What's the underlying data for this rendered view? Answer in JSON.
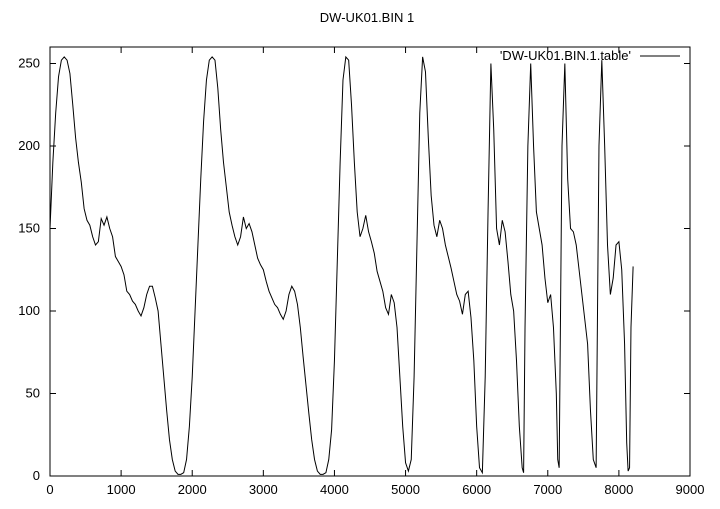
{
  "chart_data": {
    "type": "line",
    "title": "DW-UK01.BIN 1",
    "xlabel": "",
    "ylabel": "",
    "xlim": [
      0,
      9000
    ],
    "ylim": [
      0,
      260
    ],
    "xticks": [
      0,
      1000,
      2000,
      3000,
      4000,
      5000,
      6000,
      7000,
      8000,
      9000
    ],
    "yticks": [
      0,
      50,
      100,
      150,
      200,
      250
    ],
    "grid": false,
    "legend_position": "top-right",
    "series": [
      {
        "name": "'DW-UK01.BIN.1.table'",
        "color": "#000000",
        "points": [
          [
            0,
            150
          ],
          [
            40,
            190
          ],
          [
            80,
            220
          ],
          [
            120,
            242
          ],
          [
            160,
            252
          ],
          [
            200,
            254
          ],
          [
            240,
            252
          ],
          [
            280,
            244
          ],
          [
            320,
            225
          ],
          [
            360,
            205
          ],
          [
            400,
            190
          ],
          [
            440,
            178
          ],
          [
            480,
            162
          ],
          [
            520,
            155
          ],
          [
            560,
            152
          ],
          [
            600,
            145
          ],
          [
            640,
            140
          ],
          [
            680,
            142
          ],
          [
            720,
            156
          ],
          [
            760,
            152
          ],
          [
            800,
            157
          ],
          [
            840,
            150
          ],
          [
            880,
            145
          ],
          [
            920,
            133
          ],
          [
            960,
            130
          ],
          [
            1000,
            127
          ],
          [
            1040,
            122
          ],
          [
            1080,
            112
          ],
          [
            1120,
            110
          ],
          [
            1160,
            106
          ],
          [
            1200,
            104
          ],
          [
            1240,
            100
          ],
          [
            1280,
            97
          ],
          [
            1320,
            102
          ],
          [
            1360,
            110
          ],
          [
            1400,
            115
          ],
          [
            1440,
            115
          ],
          [
            1480,
            108
          ],
          [
            1520,
            100
          ],
          [
            1560,
            80
          ],
          [
            1600,
            60
          ],
          [
            1640,
            40
          ],
          [
            1680,
            22
          ],
          [
            1720,
            10
          ],
          [
            1760,
            3
          ],
          [
            1800,
            1
          ],
          [
            1840,
            1
          ],
          [
            1880,
            2
          ],
          [
            1920,
            10
          ],
          [
            1960,
            30
          ],
          [
            2000,
            60
          ],
          [
            2040,
            100
          ],
          [
            2080,
            140
          ],
          [
            2120,
            180
          ],
          [
            2160,
            215
          ],
          [
            2200,
            240
          ],
          [
            2240,
            252
          ],
          [
            2280,
            254
          ],
          [
            2320,
            252
          ],
          [
            2360,
            235
          ],
          [
            2400,
            210
          ],
          [
            2440,
            190
          ],
          [
            2480,
            175
          ],
          [
            2520,
            160
          ],
          [
            2560,
            152
          ],
          [
            2600,
            145
          ],
          [
            2640,
            140
          ],
          [
            2680,
            145
          ],
          [
            2720,
            157
          ],
          [
            2760,
            150
          ],
          [
            2800,
            153
          ],
          [
            2840,
            148
          ],
          [
            2880,
            140
          ],
          [
            2920,
            132
          ],
          [
            2960,
            128
          ],
          [
            3000,
            125
          ],
          [
            3040,
            118
          ],
          [
            3080,
            112
          ],
          [
            3120,
            108
          ],
          [
            3160,
            104
          ],
          [
            3200,
            102
          ],
          [
            3240,
            98
          ],
          [
            3280,
            95
          ],
          [
            3320,
            100
          ],
          [
            3360,
            110
          ],
          [
            3400,
            115
          ],
          [
            3440,
            112
          ],
          [
            3480,
            104
          ],
          [
            3520,
            90
          ],
          [
            3560,
            72
          ],
          [
            3600,
            55
          ],
          [
            3640,
            38
          ],
          [
            3680,
            22
          ],
          [
            3720,
            10
          ],
          [
            3760,
            3
          ],
          [
            3800,
            1
          ],
          [
            3840,
            1
          ],
          [
            3880,
            2
          ],
          [
            3920,
            10
          ],
          [
            3960,
            28
          ],
          [
            4000,
            70
          ],
          [
            4040,
            130
          ],
          [
            4080,
            190
          ],
          [
            4120,
            240
          ],
          [
            4160,
            254
          ],
          [
            4200,
            252
          ],
          [
            4240,
            225
          ],
          [
            4280,
            190
          ],
          [
            4320,
            160
          ],
          [
            4360,
            145
          ],
          [
            4400,
            150
          ],
          [
            4440,
            158
          ],
          [
            4480,
            148
          ],
          [
            4520,
            142
          ],
          [
            4560,
            135
          ],
          [
            4600,
            124
          ],
          [
            4640,
            118
          ],
          [
            4680,
            112
          ],
          [
            4720,
            102
          ],
          [
            4760,
            98
          ],
          [
            4800,
            110
          ],
          [
            4840,
            105
          ],
          [
            4880,
            90
          ],
          [
            4920,
            60
          ],
          [
            4960,
            30
          ],
          [
            5000,
            8
          ],
          [
            5040,
            3
          ],
          [
            5080,
            10
          ],
          [
            5120,
            60
          ],
          [
            5160,
            140
          ],
          [
            5200,
            220
          ],
          [
            5240,
            254
          ],
          [
            5280,
            245
          ],
          [
            5320,
            205
          ],
          [
            5360,
            170
          ],
          [
            5400,
            152
          ],
          [
            5440,
            145
          ],
          [
            5480,
            155
          ],
          [
            5520,
            150
          ],
          [
            5560,
            140
          ],
          [
            5600,
            133
          ],
          [
            5640,
            126
          ],
          [
            5680,
            118
          ],
          [
            5720,
            110
          ],
          [
            5760,
            106
          ],
          [
            5800,
            98
          ],
          [
            5840,
            110
          ],
          [
            5880,
            112
          ],
          [
            5920,
            96
          ],
          [
            5960,
            70
          ],
          [
            6000,
            30
          ],
          [
            6040,
            5
          ],
          [
            6080,
            2
          ],
          [
            6120,
            60
          ],
          [
            6160,
            160
          ],
          [
            6200,
            250
          ],
          [
            6240,
            210
          ],
          [
            6280,
            150
          ],
          [
            6320,
            140
          ],
          [
            6360,
            155
          ],
          [
            6400,
            148
          ],
          [
            6440,
            130
          ],
          [
            6480,
            110
          ],
          [
            6520,
            100
          ],
          [
            6560,
            70
          ],
          [
            6600,
            30
          ],
          [
            6640,
            5
          ],
          [
            6660,
            2
          ],
          [
            6680,
            90
          ],
          [
            6720,
            200
          ],
          [
            6760,
            250
          ],
          [
            6800,
            200
          ],
          [
            6840,
            160
          ],
          [
            6880,
            150
          ],
          [
            6920,
            140
          ],
          [
            6960,
            120
          ],
          [
            7000,
            105
          ],
          [
            7040,
            110
          ],
          [
            7080,
            90
          ],
          [
            7120,
            50
          ],
          [
            7140,
            10
          ],
          [
            7160,
            5
          ],
          [
            7200,
            200
          ],
          [
            7240,
            250
          ],
          [
            7280,
            180
          ],
          [
            7320,
            150
          ],
          [
            7360,
            148
          ],
          [
            7400,
            140
          ],
          [
            7440,
            125
          ],
          [
            7480,
            110
          ],
          [
            7520,
            95
          ],
          [
            7560,
            80
          ],
          [
            7600,
            40
          ],
          [
            7640,
            10
          ],
          [
            7680,
            5
          ],
          [
            7720,
            200
          ],
          [
            7760,
            252
          ],
          [
            7800,
            200
          ],
          [
            7840,
            140
          ],
          [
            7880,
            110
          ],
          [
            7920,
            120
          ],
          [
            7960,
            140
          ],
          [
            8000,
            142
          ],
          [
            8040,
            125
          ],
          [
            8080,
            80
          ],
          [
            8110,
            20
          ],
          [
            8130,
            3
          ],
          [
            8150,
            5
          ],
          [
            8170,
            90
          ],
          [
            8200,
            127
          ]
        ]
      }
    ]
  }
}
